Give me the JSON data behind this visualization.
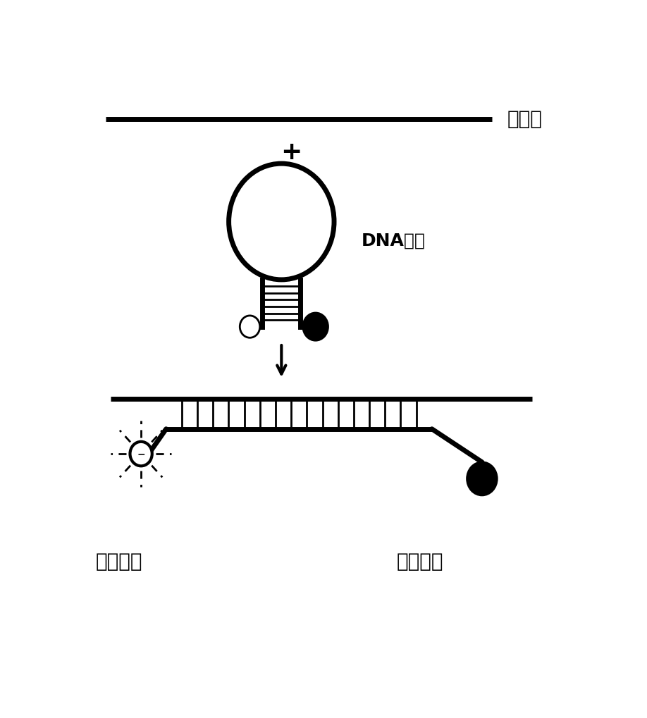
{
  "bg_color": "#ffffff",
  "line_color": "#000000",
  "title_gene": "靶基因",
  "label_dna": "DNA探针",
  "label_fluor": "发光基团",
  "label_quench": "淬灭基团",
  "plus_sign": "+",
  "fig_width": 9.18,
  "fig_height": 10.19,
  "dpi": 100
}
